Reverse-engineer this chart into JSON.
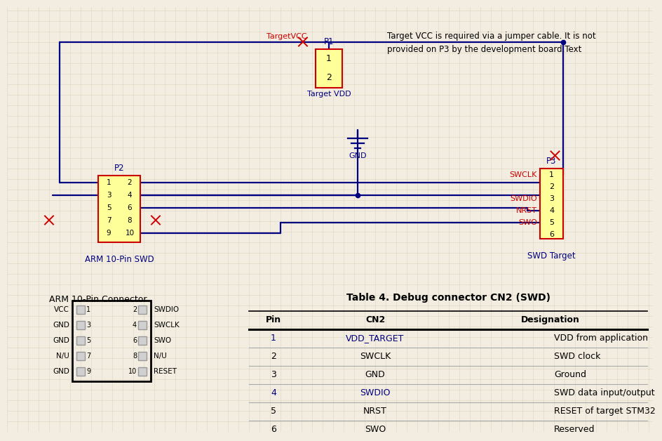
{
  "bg_color": "#f2ede0",
  "grid_color": "#ddd5c0",
  "wire_color": "#000080",
  "label_blue": "#000080",
  "label_red": "#CC0000",
  "conn_fill": "#FFFF99",
  "conn_edge": "#CC0000",
  "title": "Table 4. Debug connector CN2 (SWD)",
  "table_headers": [
    "Pin",
    "CN2",
    "Designation"
  ],
  "table_rows": [
    [
      "1",
      "VDD_TARGET",
      "VDD from application"
    ],
    [
      "2",
      "SWCLK",
      "SWD clock"
    ],
    [
      "3",
      "GND",
      "Ground"
    ],
    [
      "4",
      "SWDIO",
      "SWD data input/output"
    ],
    [
      "5",
      "NRST",
      "RESET of target STM32"
    ],
    [
      "6",
      "SWO",
      "Reserved"
    ]
  ],
  "blue_pin_rows": [
    0,
    3
  ],
  "annotation": "Target VCC is required via a jumper cable. It is not\nprovided on P3 by the development board.Text",
  "arm_rows": [
    [
      "VCC",
      "1",
      "2",
      "SWDIO"
    ],
    [
      "GND",
      "3",
      "4",
      "SWCLK"
    ],
    [
      "GND",
      "5",
      "6",
      "SWO"
    ],
    [
      "N/U",
      "7",
      "8",
      "N/U"
    ],
    [
      "GND",
      "9",
      "10",
      "RESET"
    ]
  ]
}
